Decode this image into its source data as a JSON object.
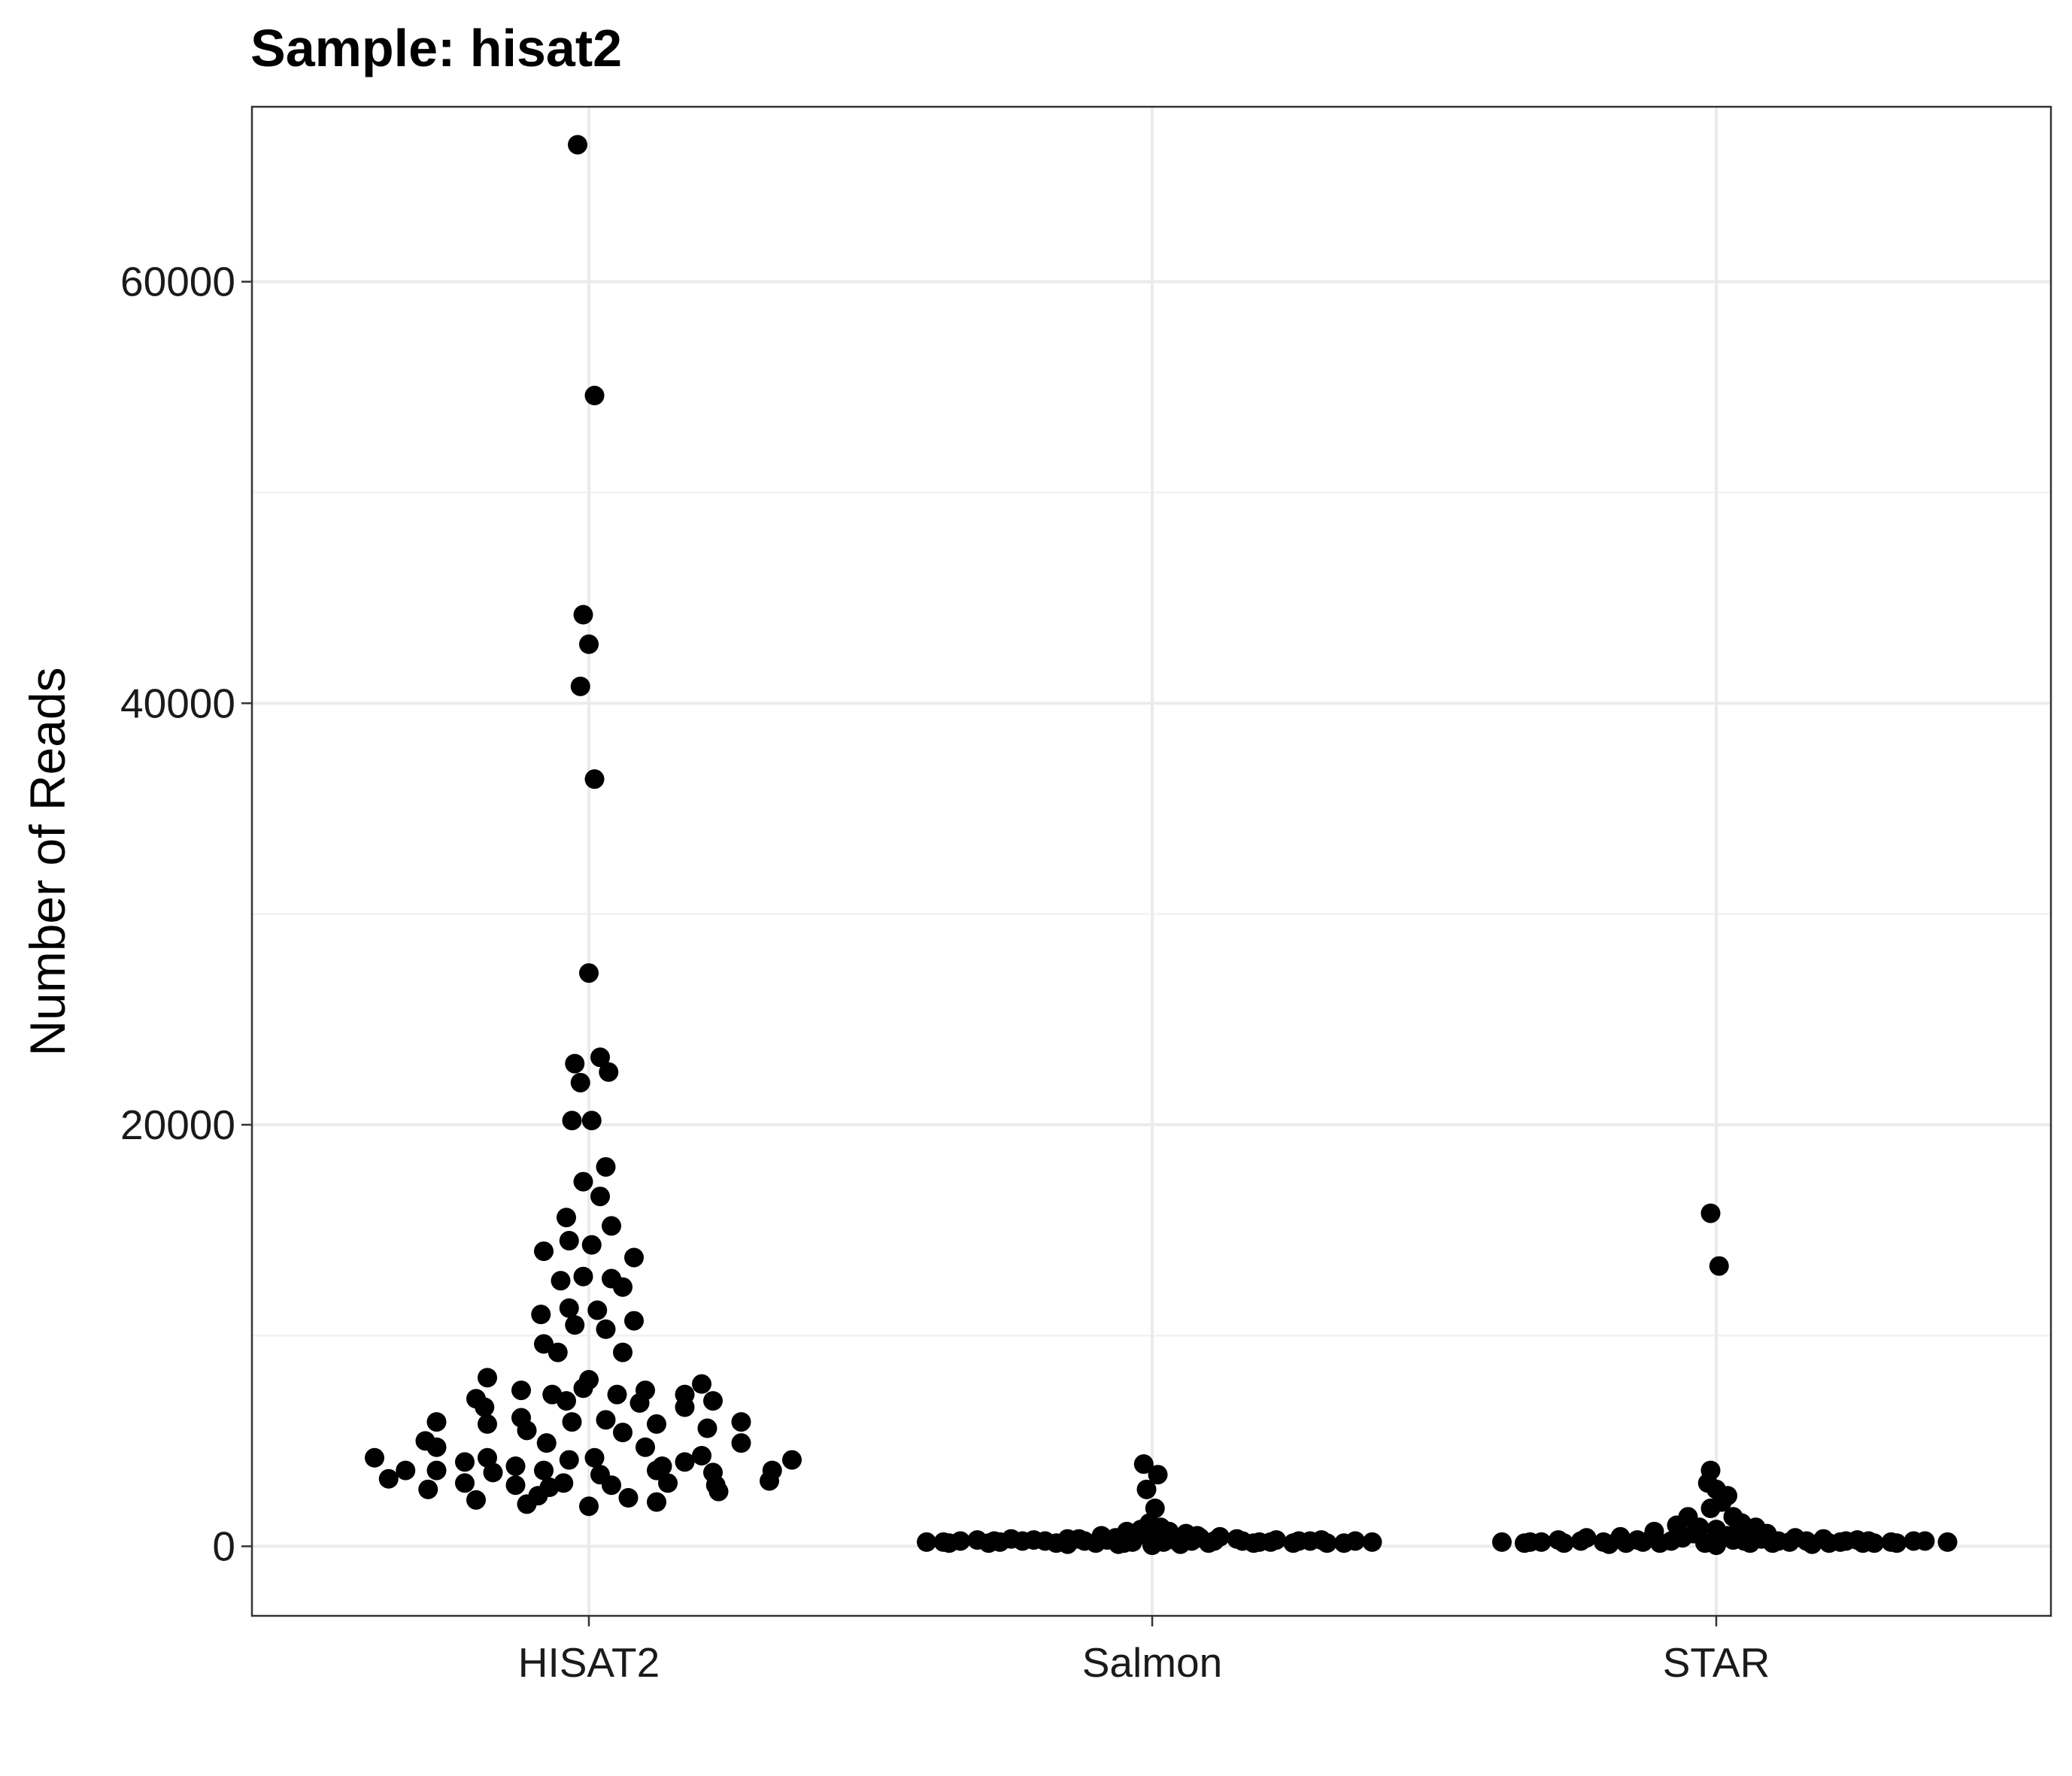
{
  "chart_data": {
    "type": "scatter",
    "subtype": "beeswarm",
    "title": "Sample: hisat2",
    "xlabel": "",
    "ylabel": "Number of Reads",
    "ylim": [
      -3300,
      68300
    ],
    "y_ticks": [
      0,
      20000,
      40000,
      60000
    ],
    "y_tick_labels": [
      "0",
      "20000",
      "40000",
      "60000"
    ],
    "y_minor_ticks": [
      10000,
      30000,
      50000
    ],
    "categories": [
      "HISAT2",
      "Salmon",
      "STAR"
    ],
    "grid": true,
    "legend": false,
    "colors": {
      "point": "#000000",
      "grid": "#ebebeb",
      "panel_border": "#333333"
    },
    "series": [
      {
        "name": "HISAT2",
        "points": [
          [
            -0.02,
            66500
          ],
          [
            0.01,
            54600
          ],
          [
            -0.01,
            44200
          ],
          [
            0.0,
            42800
          ],
          [
            -0.015,
            40800
          ],
          [
            0.01,
            36400
          ],
          [
            0.0,
            27200
          ],
          [
            -0.025,
            22900
          ],
          [
            0.02,
            23200
          ],
          [
            0.035,
            22500
          ],
          [
            -0.015,
            22000
          ],
          [
            -0.03,
            20200
          ],
          [
            0.005,
            20200
          ],
          [
            0.03,
            18000
          ],
          [
            -0.01,
            17300
          ],
          [
            0.02,
            16600
          ],
          [
            -0.04,
            15600
          ],
          [
            0.04,
            15200
          ],
          [
            -0.08,
            14000
          ],
          [
            -0.035,
            14500
          ],
          [
            0.005,
            14300
          ],
          [
            0.08,
            13700
          ],
          [
            -0.05,
            12600
          ],
          [
            -0.01,
            12800
          ],
          [
            0.04,
            12700
          ],
          [
            0.06,
            12300
          ],
          [
            -0.085,
            11000
          ],
          [
            -0.035,
            11300
          ],
          [
            0.015,
            11200
          ],
          [
            0.08,
            10700
          ],
          [
            -0.025,
            10500
          ],
          [
            0.03,
            10300
          ],
          [
            -0.08,
            9600
          ],
          [
            -0.055,
            9200
          ],
          [
            0.06,
            9200
          ],
          [
            -0.18,
            8000
          ],
          [
            -0.12,
            7400
          ],
          [
            0.0,
            7900
          ],
          [
            0.1,
            7400
          ],
          [
            0.2,
            7700
          ],
          [
            -0.2,
            7000
          ],
          [
            -0.065,
            7200
          ],
          [
            -0.04,
            6900
          ],
          [
            -0.01,
            7500
          ],
          [
            0.05,
            7200
          ],
          [
            0.09,
            6800
          ],
          [
            0.17,
            7200
          ],
          [
            0.22,
            6900
          ],
          [
            -0.27,
            5900
          ],
          [
            -0.18,
            5800
          ],
          [
            -0.12,
            6100
          ],
          [
            -0.03,
            5900
          ],
          [
            0.03,
            6000
          ],
          [
            0.06,
            5400
          ],
          [
            0.12,
            5800
          ],
          [
            0.17,
            6600
          ],
          [
            0.21,
            5600
          ],
          [
            0.27,
            5900
          ],
          [
            -0.29,
            5000
          ],
          [
            -0.185,
            6600
          ],
          [
            -0.11,
            5500
          ],
          [
            -0.075,
            4900
          ],
          [
            0.1,
            4700
          ],
          [
            -0.38,
            4200
          ],
          [
            -0.27,
            4700
          ],
          [
            -0.22,
            4000
          ],
          [
            -0.18,
            4200
          ],
          [
            -0.13,
            3800
          ],
          [
            -0.035,
            4100
          ],
          [
            0.01,
            4200
          ],
          [
            0.13,
            3800
          ],
          [
            0.17,
            4000
          ],
          [
            0.2,
            4300
          ],
          [
            0.27,
            4900
          ],
          [
            0.36,
            4100
          ],
          [
            -0.325,
            3600
          ],
          [
            -0.27,
            3600
          ],
          [
            -0.17,
            3500
          ],
          [
            -0.08,
            3600
          ],
          [
            0.02,
            3400
          ],
          [
            0.12,
            3600
          ],
          [
            0.22,
            3500
          ],
          [
            0.325,
            3600
          ],
          [
            -0.355,
            3200
          ],
          [
            -0.22,
            3000
          ],
          [
            -0.13,
            2900
          ],
          [
            -0.045,
            3000
          ],
          [
            0.04,
            2900
          ],
          [
            0.14,
            3000
          ],
          [
            0.225,
            2900
          ],
          [
            0.32,
            3100
          ],
          [
            -0.285,
            2700
          ],
          [
            -0.2,
            2200
          ],
          [
            -0.09,
            2400
          ],
          [
            -0.07,
            2800
          ],
          [
            0.07,
            2300
          ],
          [
            0.23,
            2600
          ],
          [
            -0.11,
            2000
          ],
          [
            0.0,
            1900
          ],
          [
            0.12,
            2100
          ]
        ]
      },
      {
        "name": "Salmon",
        "points": [
          [
            -0.015,
            3900
          ],
          [
            0.01,
            3400
          ],
          [
            -0.01,
            2700
          ],
          [
            0.005,
            1800
          ],
          [
            -0.005,
            1100
          ],
          [
            0.015,
            900
          ],
          [
            -0.045,
            700
          ],
          [
            -0.02,
            800
          ],
          [
            0.03,
            700
          ],
          [
            0.06,
            600
          ],
          [
            -0.09,
            500
          ],
          [
            0.085,
            400
          ],
          [
            -0.13,
            350
          ],
          [
            0.12,
            450
          ],
          [
            -0.19,
            250
          ],
          [
            -0.28,
            250
          ],
          [
            -0.37,
            200
          ],
          [
            -0.25,
            350
          ],
          [
            -0.15,
            350
          ],
          [
            -0.065,
            400
          ],
          [
            -0.035,
            200
          ],
          [
            0.0,
            100
          ],
          [
            0.04,
            300
          ],
          [
            0.07,
            250
          ],
          [
            0.15,
            350
          ],
          [
            0.22,
            300
          ],
          [
            0.26,
            250
          ],
          [
            0.31,
            150
          ],
          [
            -0.36,
            150
          ],
          [
            -0.29,
            150
          ],
          [
            -0.21,
            300
          ],
          [
            -0.1,
            150
          ],
          [
            0.1,
            150
          ],
          [
            0.19,
            200
          ],
          [
            0.25,
            150
          ],
          [
            0.34,
            150
          ],
          [
            0.39,
            200
          ],
          [
            -0.34,
            250
          ],
          [
            -0.31,
            300
          ],
          [
            -0.23,
            250
          ],
          [
            -0.17,
            150
          ],
          [
            -0.12,
            250
          ],
          [
            -0.08,
            300
          ],
          [
            -0.06,
            100
          ],
          [
            -0.01,
            500
          ],
          [
            0.02,
            200
          ],
          [
            0.05,
            100
          ],
          [
            0.11,
            250
          ],
          [
            0.16,
            250
          ],
          [
            0.21,
            200
          ],
          [
            0.28,
            250
          ],
          [
            0.3,
            300
          ],
          [
            0.36,
            250
          ],
          [
            -0.4,
            200
          ],
          [
            0.0,
            50
          ],
          [
            0.03,
            400
          ],
          [
            -0.05,
            150
          ],
          [
            0.18,
            150
          ],
          [
            -0.27,
            200
          ],
          [
            -0.15,
            100
          ],
          [
            0.08,
            500
          ]
        ]
      },
      {
        "name": "STAR",
        "points": [
          [
            -0.01,
            15800
          ],
          [
            0.005,
            13300
          ],
          [
            -0.01,
            3600
          ],
          [
            -0.015,
            3000
          ],
          [
            0.0,
            2700
          ],
          [
            0.02,
            2400
          ],
          [
            0.01,
            2100
          ],
          [
            -0.01,
            1800
          ],
          [
            -0.05,
            1400
          ],
          [
            0.03,
            1400
          ],
          [
            -0.07,
            1000
          ],
          [
            0.045,
            1100
          ],
          [
            -0.03,
            900
          ],
          [
            0.07,
            900
          ],
          [
            -0.11,
            700
          ],
          [
            0.09,
            600
          ],
          [
            -0.17,
            450
          ],
          [
            -0.23,
            400
          ],
          [
            0.14,
            400
          ],
          [
            0.19,
            350
          ],
          [
            0.25,
            300
          ],
          [
            0.27,
            250
          ],
          [
            0.31,
            200
          ],
          [
            -0.38,
            200
          ],
          [
            -0.34,
            150
          ],
          [
            -0.31,
            200
          ],
          [
            -0.28,
            300
          ],
          [
            -0.2,
            200
          ],
          [
            -0.14,
            300
          ],
          [
            -0.1,
            150
          ],
          [
            -0.06,
            400
          ],
          [
            -0.02,
            150
          ],
          [
            0.0,
            50
          ],
          [
            0.03,
            300
          ],
          [
            0.06,
            150
          ],
          [
            0.11,
            250
          ],
          [
            0.16,
            250
          ],
          [
            0.22,
            200
          ],
          [
            0.28,
            150
          ],
          [
            0.35,
            250
          ],
          [
            0.37,
            250
          ],
          [
            0.41,
            200
          ],
          [
            -0.27,
            150
          ],
          [
            -0.19,
            100
          ],
          [
            -0.13,
            200
          ],
          [
            -0.04,
            600
          ],
          [
            0.02,
            500
          ],
          [
            0.08,
            350
          ],
          [
            0.13,
            200
          ],
          [
            0.2,
            150
          ],
          [
            0.26,
            150
          ],
          [
            0.32,
            150
          ],
          [
            -0.24,
            250
          ],
          [
            -0.16,
            150
          ],
          [
            -0.08,
            250
          ],
          [
            0.05,
            250
          ],
          [
            0.1,
            150
          ],
          [
            0.17,
            100
          ],
          [
            0.23,
            250
          ],
          [
            -0.33,
            200
          ],
          [
            0.0,
            800
          ],
          [
            0.035,
            600
          ]
        ]
      }
    ]
  }
}
